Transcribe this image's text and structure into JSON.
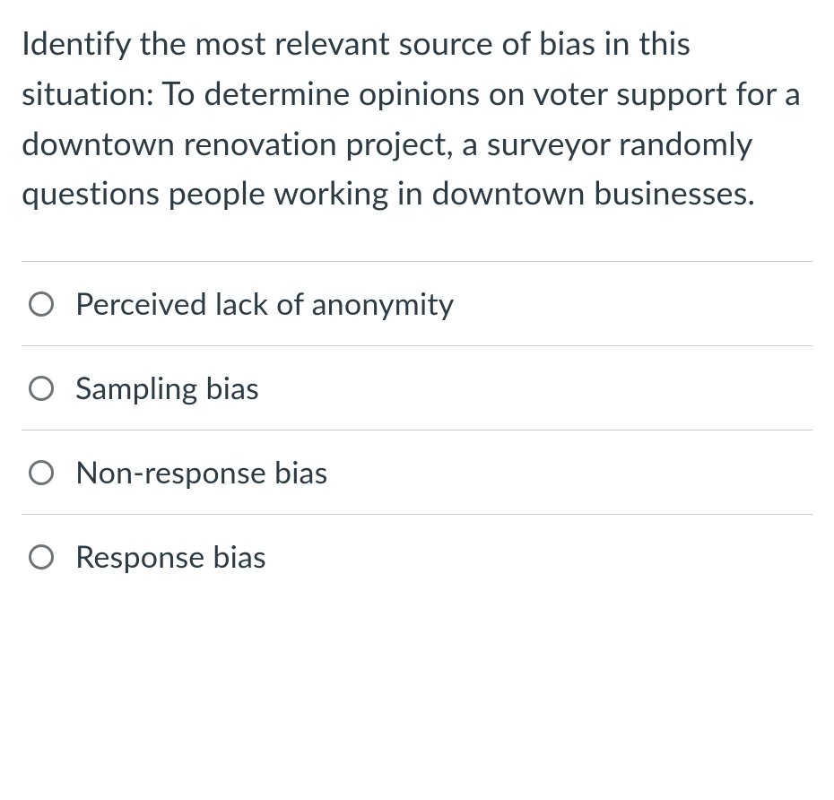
{
  "question": {
    "text": "Identify the most relevant source of bias in this situation: To determine opinions on voter support for a downtown renovation project, a surveyor randomly questions people working in downtown businesses."
  },
  "options": [
    {
      "label": "Perceived lack of anonymity"
    },
    {
      "label": "Sampling bias"
    },
    {
      "label": "Non-response bias"
    },
    {
      "label": "Response bias"
    }
  ],
  "colors": {
    "text": "#2d3b45",
    "border": "#c7cdd1",
    "radio_border": "#6e7377",
    "background": "#ffffff"
  }
}
